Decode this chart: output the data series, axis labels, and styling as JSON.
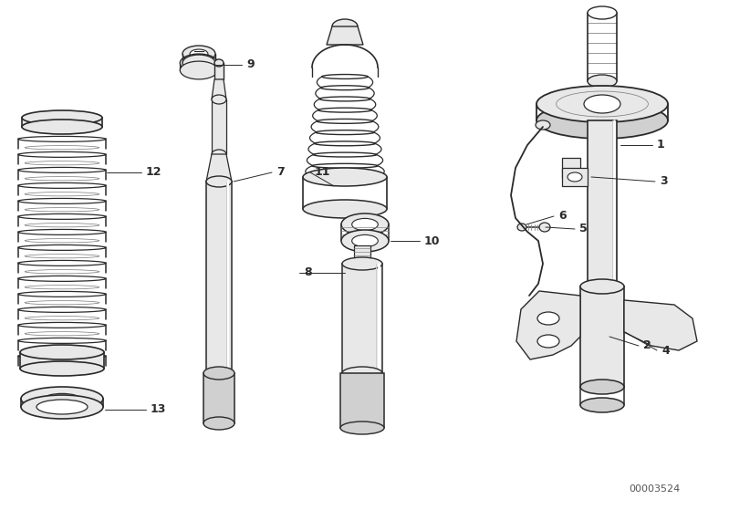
{
  "background_color": "#ffffff",
  "part_number": "00003524",
  "line_color": "#2a2a2a",
  "fill_light": "#e8e8e8",
  "fill_mid": "#d0d0d0",
  "fill_dark": "#b0b0b0",
  "fig_width": 7.99,
  "fig_height": 5.59,
  "dpi": 100
}
